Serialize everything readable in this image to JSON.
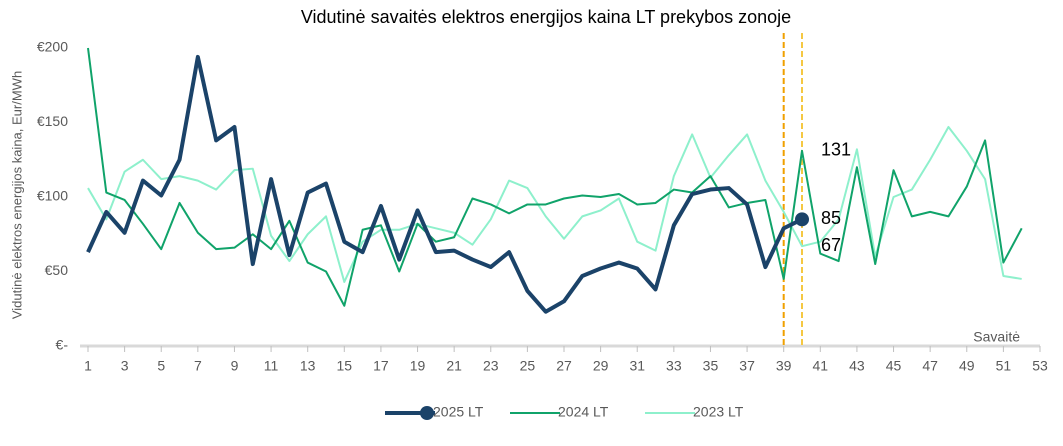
{
  "chart_data": {
    "type": "line",
    "title": "Vidutinė savaitės elektros energijos kaina LT prekybos zonoje",
    "y_label": "Vidutinė elektros energijos kaina, Eur/MWh",
    "x_label": "Savaitė",
    "x": [
      1,
      2,
      3,
      4,
      5,
      6,
      7,
      8,
      9,
      10,
      11,
      12,
      13,
      14,
      15,
      16,
      17,
      18,
      19,
      20,
      21,
      22,
      23,
      24,
      25,
      26,
      27,
      28,
      29,
      30,
      31,
      32,
      33,
      34,
      35,
      36,
      37,
      38,
      39,
      40,
      41,
      42,
      43,
      44,
      45,
      46,
      47,
      48,
      49,
      50,
      51,
      52
    ],
    "series": [
      {
        "name": "2025 LT",
        "color": "#1b4369",
        "width": 4,
        "marker": "circle",
        "values": [
          63,
          90,
          76,
          111,
          101,
          125,
          194,
          138,
          147,
          55,
          112,
          61,
          103,
          109,
          70,
          63,
          94,
          58,
          91,
          63,
          64,
          58,
          53,
          63,
          37,
          23,
          30,
          47,
          52,
          56,
          52,
          38,
          81,
          102,
          105,
          106,
          95,
          53,
          79,
          85,
          null,
          null,
          null,
          null,
          null,
          null,
          null,
          null,
          null,
          null,
          null,
          null
        ]
      },
      {
        "name": "2024 LT",
        "color": "#10a36a",
        "width": 2,
        "values": [
          200,
          103,
          98,
          82,
          65,
          96,
          76,
          65,
          66,
          75,
          65,
          84,
          56,
          50,
          27,
          78,
          81,
          50,
          82,
          70,
          73,
          99,
          95,
          89,
          95,
          95,
          99,
          101,
          100,
          102,
          95,
          96,
          105,
          103,
          114,
          93,
          96,
          98,
          45,
          131,
          62,
          57,
          120,
          55,
          118,
          87,
          90,
          87,
          107,
          138,
          56,
          79
        ]
      },
      {
        "name": "2023 LT",
        "color": "#8ef0cc",
        "width": 2,
        "values": [
          106,
          85,
          117,
          125,
          112,
          114,
          111,
          105,
          118,
          119,
          74,
          57,
          75,
          87,
          43,
          70,
          78,
          78,
          82,
          79,
          76,
          68,
          85,
          111,
          106,
          87,
          72,
          87,
          91,
          99,
          70,
          64,
          114,
          142,
          113,
          128,
          142,
          111,
          90,
          67,
          70,
          85,
          132,
          60,
          100,
          105,
          125,
          147,
          131,
          112,
          47,
          45
        ]
      }
    ],
    "xlim": [
      1,
      53
    ],
    "xticks": [
      1,
      3,
      5,
      7,
      9,
      11,
      13,
      15,
      17,
      19,
      21,
      23,
      25,
      27,
      29,
      31,
      33,
      35,
      37,
      39,
      41,
      43,
      45,
      47,
      49,
      51,
      53
    ],
    "ylim": [
      0,
      200
    ],
    "yticks": [
      {
        "value": 0,
        "label": "€-"
      },
      {
        "value": 50,
        "label": "€50"
      },
      {
        "value": 100,
        "label": "€100"
      },
      {
        "value": 150,
        "label": "€150"
      },
      {
        "value": 200,
        "label": "€200"
      }
    ],
    "vlines": [
      {
        "x": 39,
        "color": "#f0a000"
      },
      {
        "x": 40,
        "color": "#f5c842"
      }
    ],
    "labelled_index": 39,
    "grid": false,
    "legend": "bottom"
  }
}
